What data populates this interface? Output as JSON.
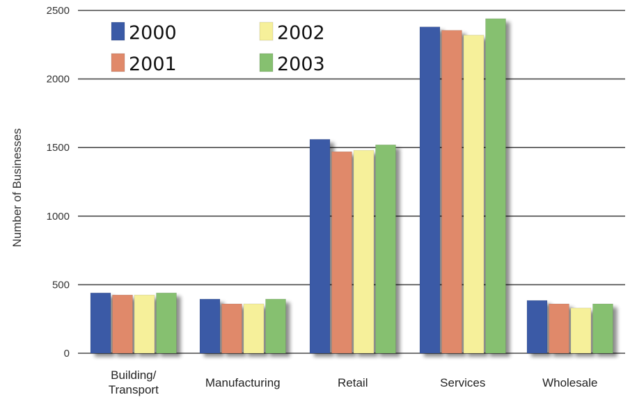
{
  "chart_data": {
    "type": "bar",
    "ylabel": "Number of Businesses",
    "ylim": [
      0,
      2500
    ],
    "yticks": [
      "0",
      "500",
      "1000",
      "1500",
      "2000",
      "2500"
    ],
    "categories": [
      "Building/\nTransport",
      "Manufacturing",
      "Retail",
      "Services",
      "Wholesale"
    ],
    "series": [
      {
        "name": "2000",
        "color": "#3a5aa6",
        "values": [
          440,
          395,
          1560,
          2380,
          385
        ]
      },
      {
        "name": "2001",
        "color": "#e0896a",
        "values": [
          425,
          360,
          1470,
          2355,
          360
        ]
      },
      {
        "name": "2002",
        "color": "#f6f09a",
        "values": [
          425,
          360,
          1480,
          2320,
          330
        ]
      },
      {
        "name": "2003",
        "color": "#86c070",
        "values": [
          440,
          395,
          1520,
          2440,
          360
        ]
      }
    ],
    "legend": "top-left",
    "grid": true
  }
}
